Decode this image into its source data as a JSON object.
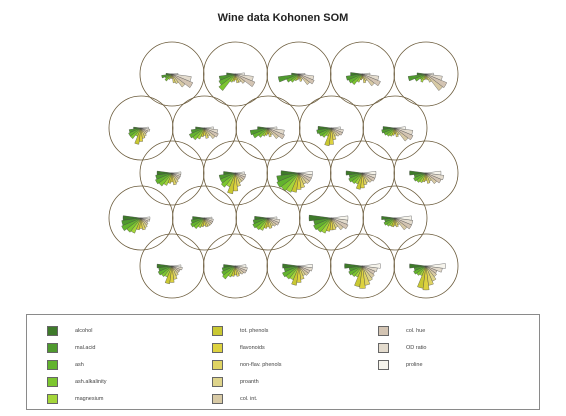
{
  "chart_data": {
    "type": "other",
    "subtype": "self-organizing map with segment (rose) glyphs per node",
    "title": "Wine data Kohonen SOM",
    "grid": {
      "rows": 5,
      "cols": 5,
      "topology": "hexagonal"
    },
    "variables": [
      {
        "name": "alcohol",
        "color": "#3e7a2a"
      },
      {
        "name": "mal.acid",
        "color": "#4f9a2e"
      },
      {
        "name": "ash",
        "color": "#62b32e"
      },
      {
        "name": "ash.alkalinity",
        "color": "#7cc62f"
      },
      {
        "name": "magnesium",
        "color": "#a4d63a"
      },
      {
        "name": "tot. phenols",
        "color": "#c9c832"
      },
      {
        "name": "flavonoids",
        "color": "#ddd23f"
      },
      {
        "name": "non-flav. phenols",
        "color": "#e0d463"
      },
      {
        "name": "proanth",
        "color": "#ded48b"
      },
      {
        "name": "col. int.",
        "color": "#d8caa5"
      },
      {
        "name": "col. hue",
        "color": "#d3c4b3"
      },
      {
        "name": "OD ratio",
        "color": "#e3dbcd"
      },
      {
        "name": "proline",
        "color": "#f6f4ec"
      }
    ],
    "codes": [
      [
        [
          0.2,
          0.35,
          0.25,
          0.3,
          0.2,
          0.15,
          0.15,
          0.3,
          0.35,
          0.55,
          0.75,
          0.65,
          0.2
        ],
        [
          0.3,
          0.55,
          0.6,
          0.7,
          0.3,
          0.25,
          0.2,
          0.3,
          0.3,
          0.4,
          0.7,
          0.6,
          0.3
        ],
        [
          0.25,
          0.7,
          0.45,
          0.35,
          0.25,
          0.2,
          0.15,
          0.25,
          0.2,
          0.45,
          0.55,
          0.5,
          0.2
        ],
        [
          0.4,
          0.55,
          0.5,
          0.45,
          0.3,
          0.2,
          0.15,
          0.3,
          0.25,
          0.5,
          0.65,
          0.55,
          0.25
        ],
        [
          0.3,
          0.6,
          0.4,
          0.25,
          0.3,
          0.2,
          0.15,
          0.2,
          0.3,
          0.7,
          0.75,
          0.55,
          0.25
        ]
      ],
      [
        [
          0.25,
          0.4,
          0.45,
          0.45,
          0.3,
          0.55,
          0.45,
          0.35,
          0.3,
          0.25,
          0.25,
          0.3,
          0.25
        ],
        [
          0.3,
          0.45,
          0.55,
          0.5,
          0.4,
          0.3,
          0.25,
          0.35,
          0.3,
          0.45,
          0.5,
          0.45,
          0.3
        ],
        [
          0.35,
          0.6,
          0.55,
          0.4,
          0.3,
          0.25,
          0.2,
          0.3,
          0.25,
          0.45,
          0.6,
          0.55,
          0.3
        ],
        [
          0.45,
          0.5,
          0.45,
          0.4,
          0.3,
          0.6,
          0.55,
          0.4,
          0.3,
          0.35,
          0.4,
          0.4,
          0.3
        ],
        [
          0.4,
          0.45,
          0.4,
          0.35,
          0.3,
          0.25,
          0.2,
          0.3,
          0.25,
          0.55,
          0.65,
          0.6,
          0.35
        ]
      ],
      [
        [
          0.5,
          0.55,
          0.6,
          0.55,
          0.45,
          0.35,
          0.3,
          0.4,
          0.35,
          0.3,
          0.3,
          0.3,
          0.3
        ],
        [
          0.4,
          0.55,
          0.55,
          0.6,
          0.5,
          0.7,
          0.6,
          0.45,
          0.35,
          0.35,
          0.35,
          0.35,
          0.3
        ],
        [
          0.6,
          0.75,
          0.8,
          0.75,
          0.7,
          0.65,
          0.55,
          0.5,
          0.4,
          0.45,
          0.45,
          0.45,
          0.45
        ],
        [
          0.55,
          0.45,
          0.5,
          0.45,
          0.4,
          0.55,
          0.5,
          0.4,
          0.35,
          0.4,
          0.45,
          0.45,
          0.45
        ],
        [
          0.55,
          0.4,
          0.45,
          0.4,
          0.35,
          0.3,
          0.25,
          0.35,
          0.3,
          0.45,
          0.55,
          0.6,
          0.5
        ]
      ],
      [
        [
          0.6,
          0.65,
          0.7,
          0.6,
          0.55,
          0.4,
          0.35,
          0.4,
          0.35,
          0.3,
          0.25,
          0.3,
          0.3
        ],
        [
          0.4,
          0.45,
          0.5,
          0.45,
          0.35,
          0.3,
          0.25,
          0.3,
          0.3,
          0.3,
          0.3,
          0.3,
          0.25
        ],
        [
          0.45,
          0.5,
          0.55,
          0.5,
          0.45,
          0.35,
          0.3,
          0.35,
          0.3,
          0.35,
          0.4,
          0.4,
          0.3
        ],
        [
          0.75,
          0.6,
          0.65,
          0.6,
          0.55,
          0.45,
          0.4,
          0.4,
          0.35,
          0.5,
          0.6,
          0.55,
          0.55
        ],
        [
          0.45,
          0.35,
          0.4,
          0.35,
          0.3,
          0.3,
          0.25,
          0.3,
          0.25,
          0.5,
          0.6,
          0.6,
          0.55
        ]
      ],
      [
        [
          0.5,
          0.45,
          0.5,
          0.45,
          0.4,
          0.6,
          0.55,
          0.45,
          0.35,
          0.3,
          0.3,
          0.35,
          0.3
        ],
        [
          0.4,
          0.45,
          0.5,
          0.55,
          0.4,
          0.35,
          0.3,
          0.35,
          0.3,
          0.35,
          0.4,
          0.4,
          0.35
        ],
        [
          0.55,
          0.5,
          0.6,
          0.55,
          0.5,
          0.65,
          0.55,
          0.45,
          0.35,
          0.4,
          0.4,
          0.45,
          0.45
        ],
        [
          0.6,
          0.45,
          0.5,
          0.45,
          0.4,
          0.7,
          0.75,
          0.65,
          0.55,
          0.5,
          0.45,
          0.5,
          0.6
        ],
        [
          0.55,
          0.4,
          0.45,
          0.4,
          0.35,
          0.75,
          0.8,
          0.65,
          0.55,
          0.45,
          0.4,
          0.55,
          0.65
        ]
      ]
    ],
    "legend": {
      "placement": "bottom",
      "columns": 3
    }
  }
}
